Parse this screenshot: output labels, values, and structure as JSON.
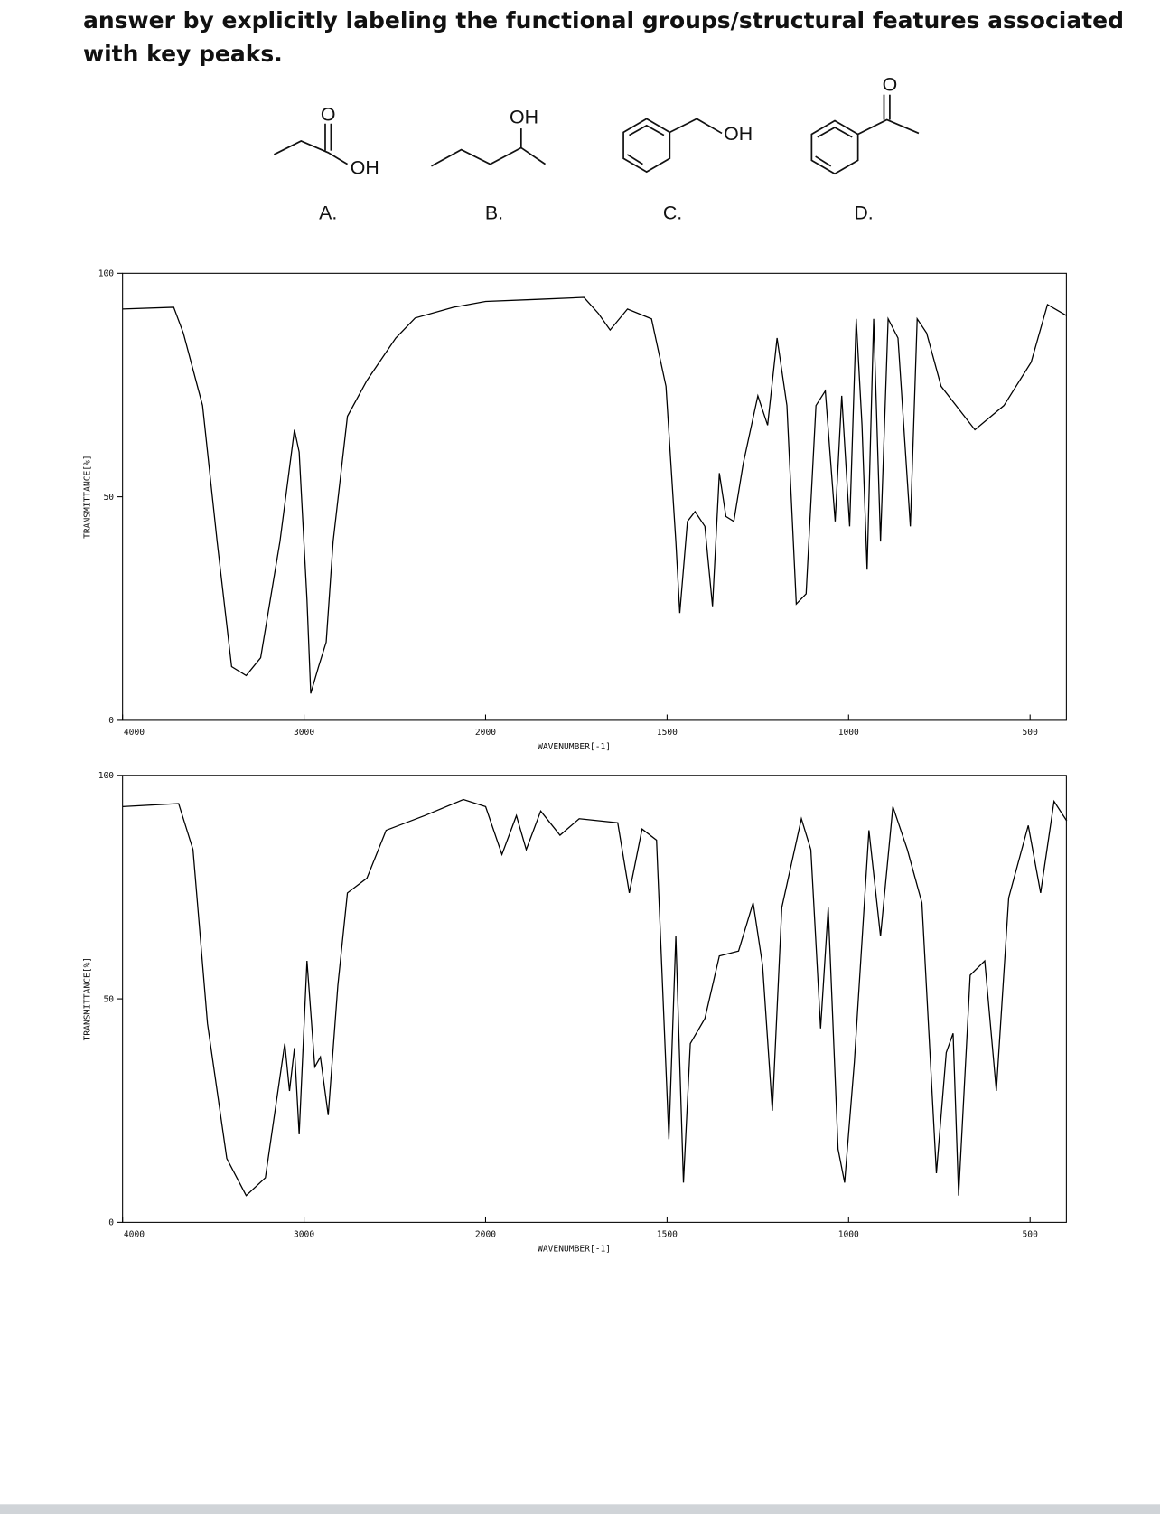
{
  "header": {
    "text": "answer by explicitly labeling the functional groups/structural features associated with key peaks."
  },
  "structures": [
    {
      "label": "A.",
      "atoms": [
        "O",
        "OH"
      ]
    },
    {
      "label": "B.",
      "atoms": [
        "OH"
      ]
    },
    {
      "label": "C.",
      "atoms": [
        "OH"
      ]
    },
    {
      "label": "D.",
      "atoms": [
        "O"
      ]
    }
  ],
  "chart_data": [
    {
      "type": "line",
      "y_label": "TRANSMITTANCE[%]",
      "x_label": "WAVENUMBER[-1]",
      "xlim": [
        4000,
        400
      ],
      "ylim": [
        0,
        100
      ],
      "x_scale_break": 2000,
      "xticks": [
        4000,
        3000,
        2000,
        1500,
        1000,
        500
      ],
      "yticks": [
        0,
        50,
        100
      ],
      "color": "#000000",
      "x": [
        4000,
        3718,
        3665,
        3559,
        3479,
        3399,
        3319,
        3239,
        3133,
        3053,
        3027,
        2984,
        2963,
        2920,
        2878,
        2840,
        2761,
        2654,
        2495,
        2388,
        2176,
        2000,
        1848,
        1729,
        1689,
        1657,
        1609,
        1543,
        1503,
        1476,
        1465,
        1444,
        1423,
        1396,
        1375,
        1356,
        1338,
        1316,
        1290,
        1250,
        1223,
        1197,
        1170,
        1144,
        1117,
        1090,
        1064,
        1037,
        1019,
        997,
        979,
        963,
        949,
        931,
        912,
        891,
        864,
        830,
        811,
        785,
        745,
        652,
        572,
        497,
        452,
        399
      ],
      "values": [
        92,
        92.4,
        86.6,
        70.4,
        40,
        12,
        10,
        14,
        40,
        65,
        60,
        27,
        6,
        12,
        17.5,
        40,
        68,
        76,
        85.5,
        90,
        92.4,
        93.7,
        94.2,
        94.6,
        91,
        87.3,
        92,
        89.8,
        74.7,
        40,
        24,
        44.5,
        46.7,
        43.4,
        25.5,
        55.3,
        45.6,
        44.5,
        57.5,
        72.6,
        66,
        85.5,
        70.4,
        26,
        28.3,
        70.4,
        73.7,
        44.5,
        72.6,
        43.4,
        89.8,
        66,
        33.7,
        89.8,
        40,
        89.8,
        85.5,
        43.4,
        89.8,
        86.6,
        74.7,
        65,
        70.4,
        80.1,
        93,
        90.5
      ]
    },
    {
      "type": "line",
      "y_label": "TRANSMITTANCE[%]",
      "x_label": "WAVENUMBER[-1]",
      "xlim": [
        4000,
        400
      ],
      "ylim": [
        0,
        100
      ],
      "x_scale_break": 2000,
      "xticks": [
        4000,
        3000,
        2000,
        1500,
        1000,
        500
      ],
      "yticks": [
        0,
        50,
        100
      ],
      "color": "#000000",
      "x": [
        4000,
        3691,
        3612,
        3532,
        3426,
        3319,
        3213,
        3106,
        3080,
        3053,
        3027,
        2984,
        2941,
        2910,
        2867,
        2814,
        2761,
        2654,
        2548,
        2335,
        2122,
        2000,
        1955,
        1915,
        1888,
        1848,
        1795,
        1742,
        1636,
        1604,
        1569,
        1529,
        1495,
        1476,
        1455,
        1436,
        1396,
        1356,
        1303,
        1263,
        1237,
        1210,
        1184,
        1130,
        1104,
        1077,
        1056,
        1029,
        1011,
        984,
        944,
        912,
        878,
        838,
        798,
        758,
        731,
        712,
        697,
        665,
        625,
        593,
        559,
        505,
        471,
        434,
        399
      ],
      "values": [
        93,
        93.7,
        83.4,
        44.5,
        14.3,
        6,
        10,
        40,
        29.4,
        39,
        19.7,
        58.5,
        34.8,
        37,
        24,
        53,
        73.7,
        77,
        87.7,
        91,
        94.6,
        93,
        82.3,
        91,
        83.4,
        92,
        86.6,
        90.3,
        89.4,
        73.7,
        88,
        85.5,
        18.6,
        64,
        8.9,
        40,
        45.6,
        59.6,
        60.7,
        71.5,
        57.5,
        25,
        70.4,
        90.3,
        83.4,
        43.4,
        70.4,
        16.4,
        8.9,
        35.9,
        87.7,
        64,
        93,
        83.4,
        71.5,
        11,
        38,
        42.3,
        6,
        55.3,
        58.5,
        29.4,
        72.6,
        88.8,
        73.7,
        94.2,
        89.8
      ]
    }
  ]
}
